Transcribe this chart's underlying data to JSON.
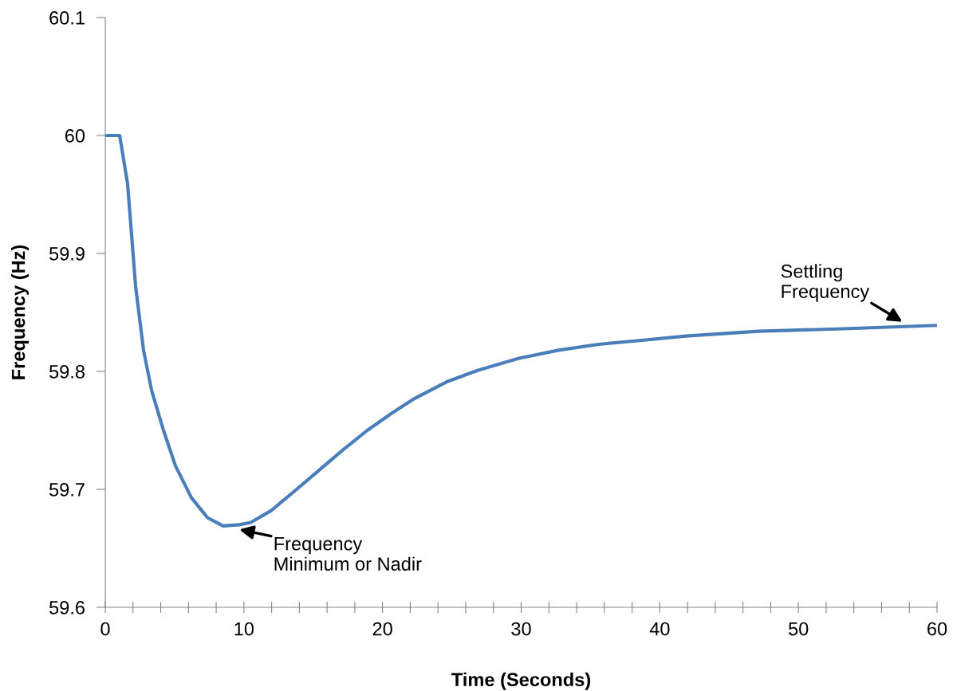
{
  "chart_data": {
    "type": "line",
    "xlabel": "Time (Seconds)",
    "ylabel": "Frequency (Hz)",
    "x": [
      0,
      1,
      1.04,
      1.61,
      2.19,
      2.76,
      3.34,
      4.2,
      5.06,
      6.21,
      7.37,
      8.5,
      9.67,
      10.5,
      11.97,
      13.7,
      15.4,
      17.1,
      18.9,
      20.6,
      22.3,
      24.6,
      26.9,
      29.8,
      32.7,
      35.6,
      38.4,
      41.9,
      47.1,
      52.8,
      60
    ],
    "series": [
      {
        "color": "#4a7ebb",
        "values": [
          60.0,
          60.0,
          60.0,
          59.959,
          59.872,
          59.818,
          59.784,
          59.75,
          59.72,
          59.693,
          59.676,
          59.669,
          59.67,
          59.672,
          59.682,
          59.699,
          59.716,
          59.733,
          59.75,
          59.764,
          59.777,
          59.791,
          59.801,
          59.811,
          59.818,
          59.823,
          59.826,
          59.83,
          59.834,
          59.836,
          59.839
        ]
      }
    ],
    "xlim": [
      0,
      60
    ],
    "ylim": [
      59.6,
      60.1
    ],
    "xticks": [
      0,
      {
        "value": 2,
        "label": null
      },
      {
        "value": 4,
        "label": null
      },
      {
        "value": 6,
        "label": null
      },
      {
        "value": 8,
        "label": null
      },
      10,
      {
        "value": 12,
        "label": null
      },
      {
        "value": 14,
        "label": null
      },
      {
        "value": 16,
        "label": null
      },
      {
        "value": 18,
        "label": null
      },
      20,
      {
        "value": 22,
        "label": null
      },
      {
        "value": 24,
        "label": null
      },
      {
        "value": 26,
        "label": null
      },
      {
        "value": 28,
        "label": null
      },
      30,
      {
        "value": 32,
        "label": null
      },
      {
        "value": 34,
        "label": null
      },
      {
        "value": 36,
        "label": null
      },
      {
        "value": 38,
        "label": null
      },
      40,
      {
        "value": 42,
        "label": null
      },
      {
        "value": 44,
        "label": null
      },
      {
        "value": 46,
        "label": null
      },
      {
        "value": 48,
        "label": null
      },
      50,
      {
        "value": 52,
        "label": null
      },
      {
        "value": 54,
        "label": null
      },
      {
        "value": 56,
        "label": null
      },
      {
        "value": 58,
        "label": null
      },
      60
    ],
    "yticks": [
      59.6,
      59.7,
      59.8,
      59.9,
      60,
      60.1
    ],
    "grid": false,
    "legend": false,
    "marker": "none",
    "line_style": "solid",
    "annotations": [
      {
        "text": "Frequency\nMinimum or Nadir",
        "x": 9.67,
        "y": 59.67
      },
      {
        "text": "Settling\nFrequency",
        "x": 57.5,
        "y": 59.838
      }
    ]
  }
}
